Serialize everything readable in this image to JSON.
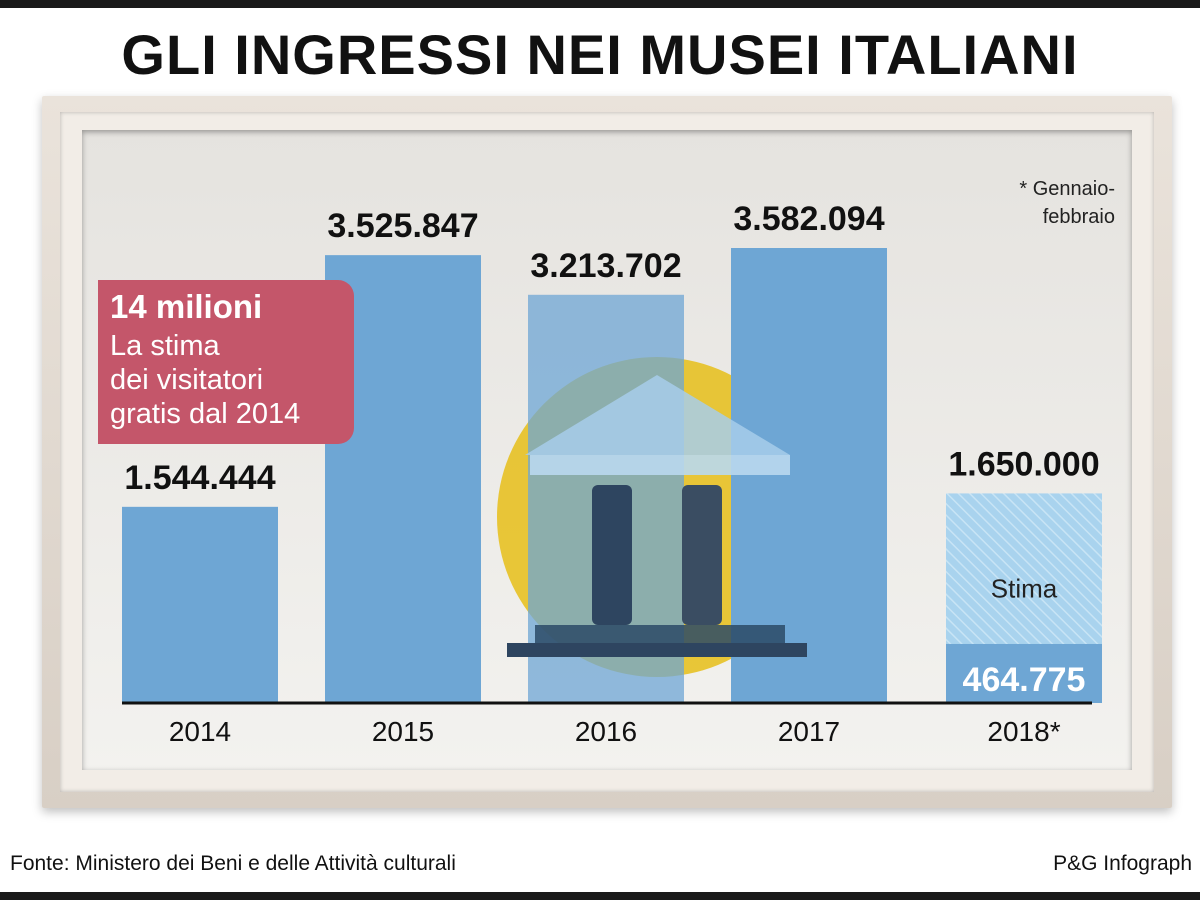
{
  "title": "GLI INGRESSI NEI MUSEI ITALIANI",
  "callout": {
    "headline": "14 milioni",
    "lines": [
      "La stima",
      "dei visitatori",
      "gratis dal 2014"
    ]
  },
  "note": [
    "* Gennaio-",
    "febbraio"
  ],
  "footer": {
    "source": "Fonte: Ministero dei Beni e delle Attività culturali",
    "credit": "P&G Infograph"
  },
  "chart_data": {
    "type": "bar",
    "title": "GLI INGRESSI NEI MUSEI ITALIANI",
    "categories": [
      "2014",
      "2015",
      "2016",
      "2017",
      "2018*"
    ],
    "values": [
      1544444,
      3525847,
      3213702,
      3582094,
      464775
    ],
    "value_labels": [
      "1.544.444",
      "3.525.847",
      "3.213.702",
      "3.582.094",
      "464.775"
    ],
    "estimate": {
      "category": "2018*",
      "value": 1650000,
      "label": "1.650.000",
      "text": "Stima"
    },
    "xlabel": "",
    "ylabel": "",
    "ylim": [
      0,
      3582094
    ],
    "grid": false,
    "colors": {
      "bar": "#6ea6d4",
      "estimate": "#a9d3ee",
      "axis": "#111111",
      "callout": "#c4566a"
    }
  }
}
